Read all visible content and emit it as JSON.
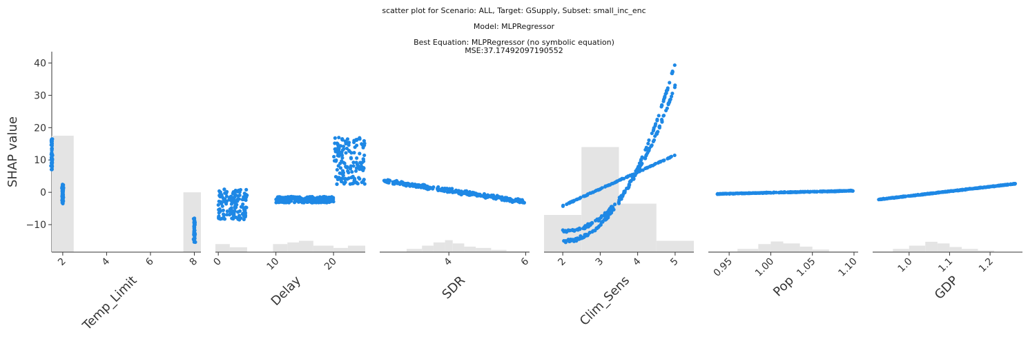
{
  "title": {
    "line1": "scatter plot for Scenario: ALL, Target: GSupply, Subset: small_inc_enc",
    "line2": "Model: MLPRegressor",
    "line3": "Best Equation: MLPRegressor (no symbolic equation)",
    "line4": "MSE:37.17492097190552"
  },
  "chart_data": {
    "type": "scatter",
    "ylabel": "SHAP value",
    "ylim": [
      -18.5,
      43.5
    ],
    "yticks": [
      -10,
      0,
      10,
      20,
      30,
      40
    ],
    "yticks_labels": [
      "−10",
      "0",
      "10",
      "20",
      "30",
      "40"
    ],
    "point_color": "#1e88e5",
    "hist_color": "#e4e4e4",
    "panels": [
      {
        "feature": "Temp_Limit",
        "xlim": [
          1.5,
          8.3
        ],
        "xticks": [
          2,
          4,
          6,
          8
        ],
        "xtick_labels": [
          "2",
          "4",
          "6",
          "8"
        ],
        "clusters": [
          {
            "x": 1.5,
            "xspread": 0.05,
            "y_range": [
              7,
              16.5
            ],
            "n": 60
          },
          {
            "x": 2.0,
            "xspread": 0.05,
            "y_range": [
              -3.5,
              2.5
            ],
            "n": 60
          },
          {
            "x": 8.0,
            "xspread": 0.05,
            "y_range": [
              -15.5,
              -8
            ],
            "n": 50
          }
        ],
        "hist": [
          [
            1.5,
            2.5,
            17.5
          ],
          [
            7.5,
            8.3,
            0
          ]
        ]
      },
      {
        "feature": "Delay",
        "xlim": [
          -0.5,
          25.5
        ],
        "xticks": [
          0,
          10,
          20
        ],
        "xtick_labels": [
          "0",
          "10",
          "20"
        ],
        "bands": [
          {
            "x_range": [
              0,
              5
            ],
            "y_range": [
              -8.5,
              1.2
            ],
            "n": 140
          },
          {
            "x_range": [
              10,
              20
            ],
            "y_range": [
              -3.2,
              -1.3
            ],
            "n": 260
          },
          {
            "x_range": [
              20,
              25.5
            ],
            "y_range": [
              2.5,
              17
            ],
            "n": 150
          }
        ],
        "hist": [
          [
            -0.5,
            2,
            -16
          ],
          [
            2,
            5,
            -17
          ],
          [
            5,
            9.5,
            -18.5
          ],
          [
            9.5,
            12,
            -16
          ],
          [
            12,
            14,
            -15.5
          ],
          [
            14,
            16.5,
            -15
          ],
          [
            16.5,
            20,
            -16.5
          ],
          [
            20,
            22.5,
            -17.2
          ],
          [
            22.5,
            25.5,
            -16.5
          ]
        ]
      },
      {
        "feature": "SDR",
        "xlim": [
          2.2,
          6.1
        ],
        "xticks": [
          4,
          6
        ],
        "xtick_labels": [
          "4",
          "6"
        ],
        "trend": {
          "x_range": [
            2.3,
            6.0
          ],
          "y_start": 3.5,
          "y_end": -3.0,
          "spread": 1.8,
          "n": 320
        },
        "hist": [
          [
            2.2,
            2.9,
            -18.3
          ],
          [
            2.9,
            3.3,
            -17.5
          ],
          [
            3.3,
            3.6,
            -16.5
          ],
          [
            3.6,
            3.9,
            -15.5
          ],
          [
            3.9,
            4.1,
            -14.8
          ],
          [
            4.1,
            4.4,
            -15.8
          ],
          [
            4.4,
            4.7,
            -16.8
          ],
          [
            4.7,
            5.1,
            -17.2
          ],
          [
            5.1,
            5.5,
            -17.8
          ],
          [
            5.5,
            6.1,
            -18.2
          ]
        ]
      },
      {
        "feature": "Clim_Sens",
        "xlim": [
          1.5,
          5.5
        ],
        "xticks": [
          2,
          3,
          4,
          5
        ],
        "xtick_labels": [
          "2",
          "3",
          "4",
          "5"
        ],
        "curves": [
          {
            "x_range": [
              2,
              5
            ],
            "y_start": -4.2,
            "y_end": 11.5,
            "power": 1.0,
            "spread": 0.4,
            "n": 110
          },
          {
            "x_range": [
              2,
              5
            ],
            "y_start": -15,
            "y_end": 40,
            "power": 2.2,
            "spread": 1.5,
            "n": 140
          },
          {
            "x_range": [
              2,
              5
            ],
            "y_start": -12,
            "y_end": 33,
            "power": 2.2,
            "spread": 1.5,
            "n": 140
          }
        ],
        "hist": [
          [
            1.5,
            2.5,
            -7
          ],
          [
            2.5,
            3.5,
            14
          ],
          [
            3.5,
            4.5,
            -3.5
          ],
          [
            4.5,
            5.5,
            -15
          ]
        ]
      },
      {
        "feature": "Pop",
        "xlim": [
          0.925,
          1.105
        ],
        "xticks": [
          0.95,
          1.0,
          1.05,
          1.1
        ],
        "xtick_labels": [
          "0.95",
          "1.00",
          "1.05",
          "1.10"
        ],
        "trend": {
          "x_range": [
            0.935,
            1.1
          ],
          "y_start": -0.5,
          "y_end": 0.5,
          "spread": 0.3,
          "n": 320
        },
        "hist": [
          [
            0.925,
            0.96,
            -18.3
          ],
          [
            0.96,
            0.985,
            -17.5
          ],
          [
            0.985,
            1.0,
            -16.0
          ],
          [
            1.0,
            1.015,
            -15.2
          ],
          [
            1.015,
            1.035,
            -15.8
          ],
          [
            1.035,
            1.05,
            -16.8
          ],
          [
            1.05,
            1.07,
            -17.7
          ],
          [
            1.07,
            1.105,
            -18.3
          ]
        ]
      },
      {
        "feature": "GDP",
        "xlim": [
          0.91,
          1.28
        ],
        "xticks": [
          1.0,
          1.1,
          1.2
        ],
        "xtick_labels": [
          "1.0",
          "1.1",
          "1.2"
        ],
        "trend": {
          "x_range": [
            0.925,
            1.265
          ],
          "y_start": -2.2,
          "y_end": 2.7,
          "spread": 0.3,
          "n": 320
        },
        "hist": [
          [
            0.91,
            0.96,
            -18.3
          ],
          [
            0.96,
            1.0,
            -17.5
          ],
          [
            1.0,
            1.04,
            -16.5
          ],
          [
            1.04,
            1.07,
            -15.3
          ],
          [
            1.07,
            1.1,
            -15.8
          ],
          [
            1.1,
            1.13,
            -16.9
          ],
          [
            1.13,
            1.17,
            -17.5
          ],
          [
            1.17,
            1.21,
            -18.0
          ],
          [
            1.21,
            1.28,
            -18.4
          ]
        ]
      }
    ]
  }
}
